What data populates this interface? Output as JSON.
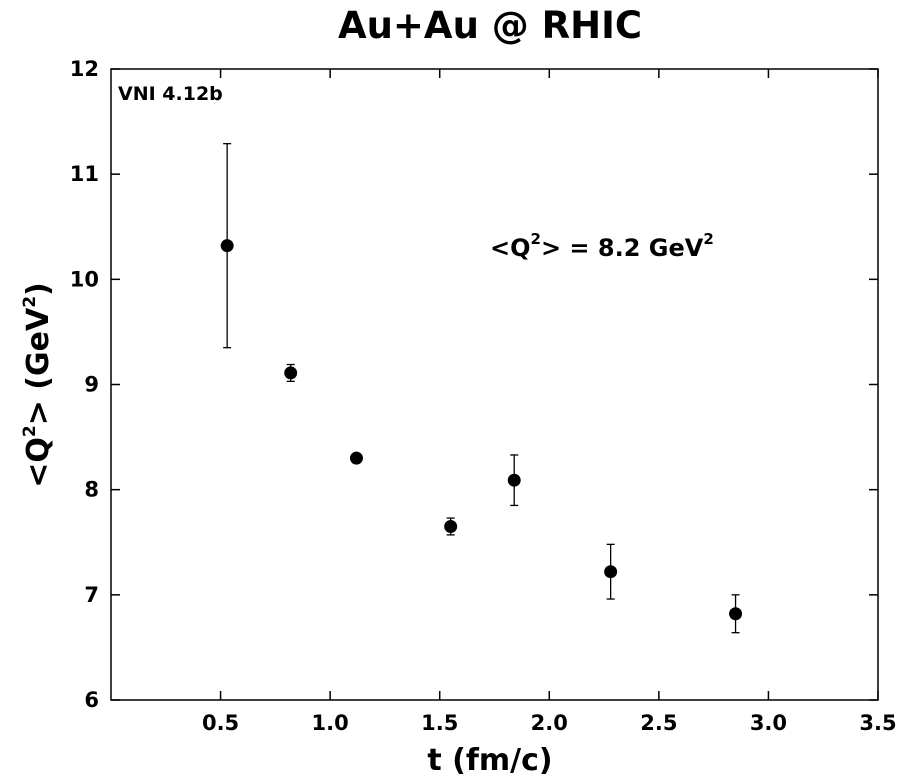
{
  "chart_data": {
    "type": "scatter",
    "title": "Au+Au @ RHIC",
    "xlabel": "t (fm/c)",
    "ylabel_parts": [
      "<Q",
      "2",
      ">  (GeV",
      "2",
      ")"
    ],
    "generator_label": "VNI 4.12b",
    "annotation_parts": [
      "<Q",
      "2",
      ">  = 8.2 GeV",
      "2"
    ],
    "xlim": [
      0,
      3.5
    ],
    "ylim": [
      6,
      12
    ],
    "x_ticks": [
      0.5,
      1.0,
      1.5,
      2.0,
      2.5,
      3.0,
      3.5
    ],
    "x_tick_labels": [
      "0.5",
      "1.0",
      "1.5",
      "2.0",
      "2.5",
      "3.0",
      "3.5"
    ],
    "y_ticks": [
      6,
      7,
      8,
      9,
      10,
      11,
      12
    ],
    "y_tick_labels": [
      "6",
      "7",
      "8",
      "9",
      "10",
      "11",
      "12"
    ],
    "grid": false,
    "series": [
      {
        "x": [
          0.53,
          0.82,
          1.12,
          1.55,
          1.84,
          2.28,
          2.85
        ],
        "y": [
          10.32,
          9.11,
          8.3,
          7.65,
          8.09,
          7.22,
          6.82
        ],
        "y_err_low": [
          0.97,
          0.08,
          0.0,
          0.08,
          0.24,
          0.26,
          0.18
        ],
        "y_err_high": [
          0.97,
          0.08,
          0.0,
          0.08,
          0.24,
          0.26,
          0.18
        ]
      }
    ],
    "marker_color": "#000000"
  }
}
